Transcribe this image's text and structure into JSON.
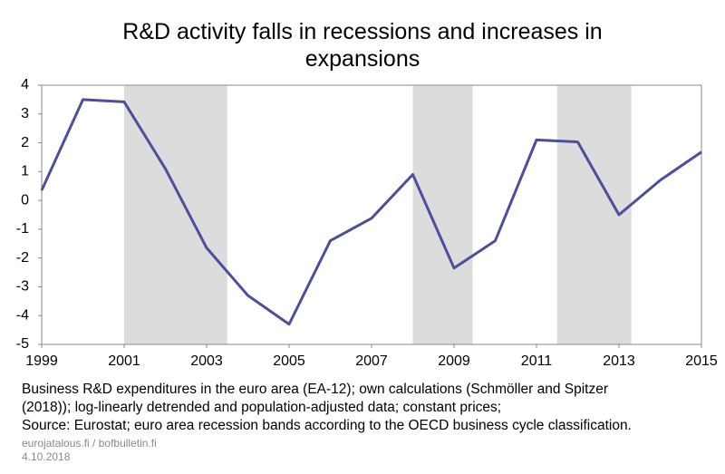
{
  "chart_data": {
    "type": "line",
    "title": "R&D activity falls in recessions and increases in expansions",
    "x": [
      1999,
      2000,
      2001,
      2002,
      2003,
      2004,
      2005,
      2006,
      2007,
      2008,
      2009,
      2010,
      2011,
      2012,
      2013,
      2014,
      2015
    ],
    "series": [
      {
        "color": "#4d4f9c",
        "values": [
          0.35,
          3.5,
          3.42,
          1.1,
          -1.65,
          -3.3,
          -4.3,
          -1.4,
          -0.62,
          0.9,
          -2.35,
          -1.4,
          2.1,
          2.03,
          -0.5,
          0.7,
          1.68
        ]
      }
    ],
    "recession_bands": [
      [
        2001,
        2003.5
      ],
      [
        2008,
        2009.45
      ],
      [
        2011.5,
        2013.3
      ]
    ],
    "band_color": "#dcdcdc",
    "xlim": [
      1999,
      2015
    ],
    "xticks": [
      1999,
      2001,
      2003,
      2005,
      2007,
      2009,
      2011,
      2013,
      2015
    ],
    "ylim": [
      -5,
      4
    ],
    "yticks": [
      -5,
      -4,
      -3,
      -2,
      -1,
      0,
      1,
      2,
      3,
      4
    ],
    "notes": [
      "Business R&D expenditures in the euro area (EA-12); own calculations (Schmöller and Spitzer",
      "(2018)); log-linearly detrended and population-adjusted data; constant prices;",
      "Source: Eurostat; euro area recession bands according to the OECD business cycle classification."
    ],
    "credit": "eurojatalous.fi / bofbulletin.fi",
    "date": "4.10.2018"
  }
}
